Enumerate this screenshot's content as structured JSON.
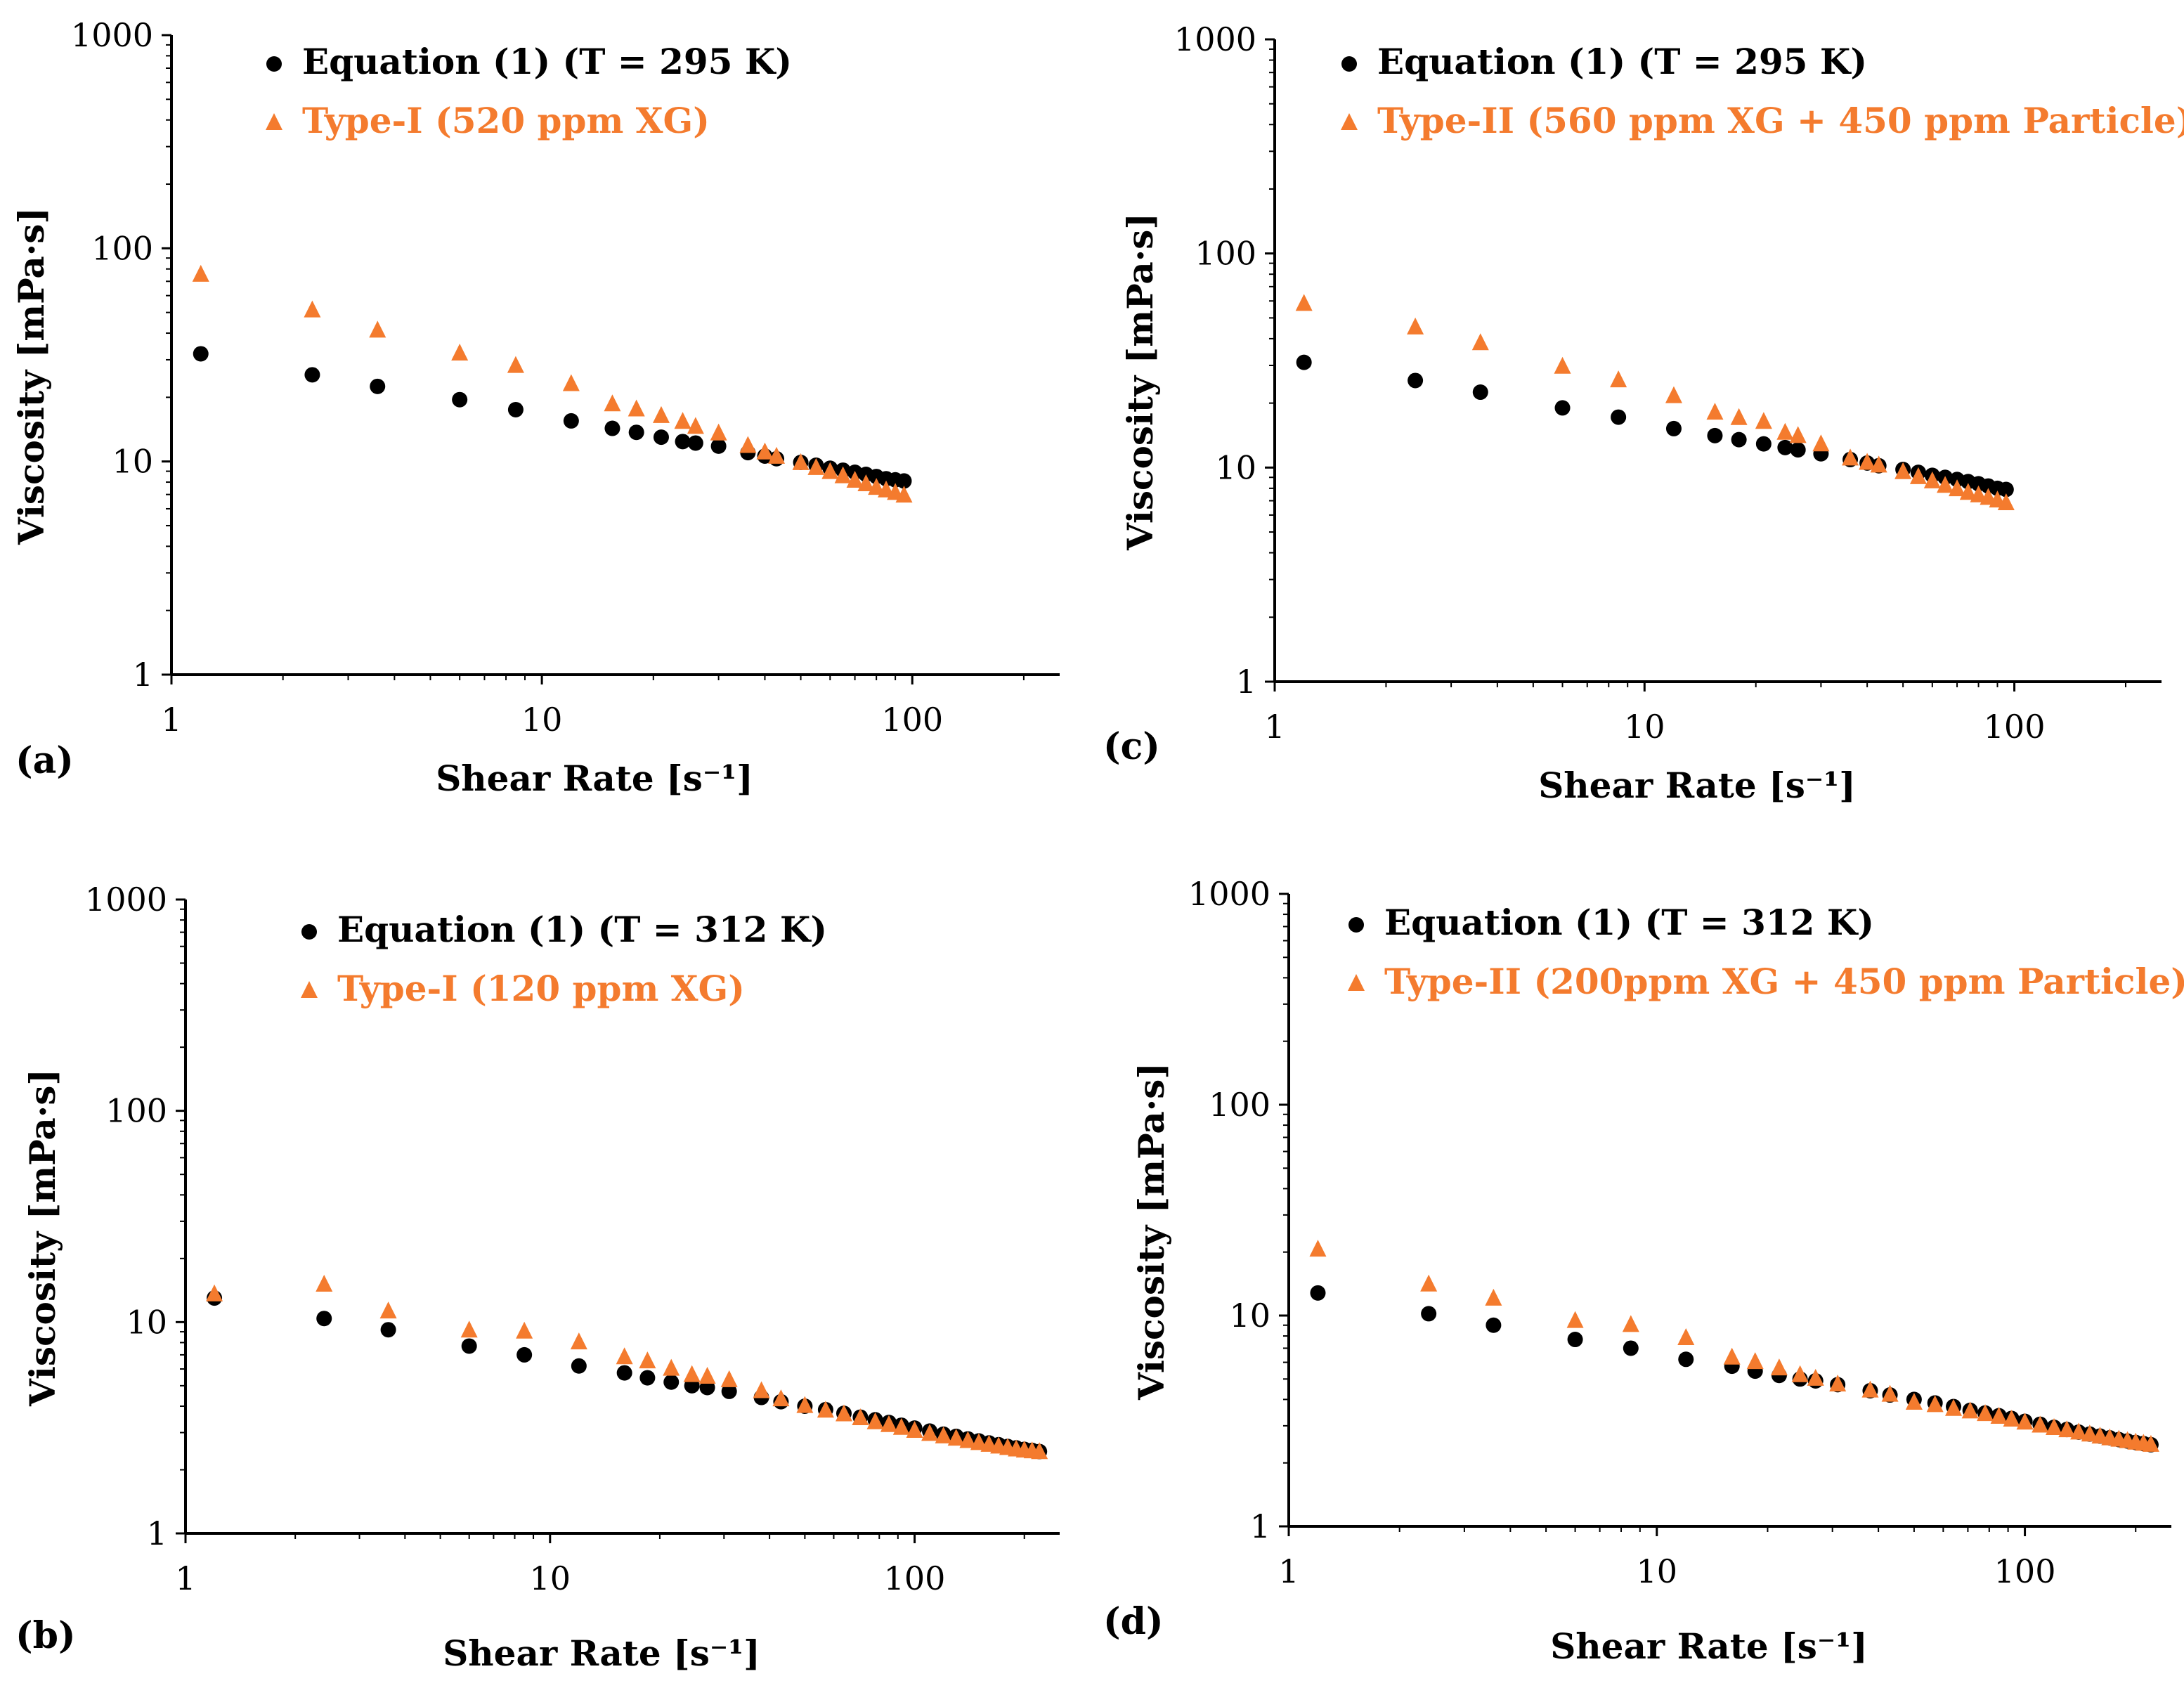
{
  "chart_data": [
    {
      "panel": "(a)",
      "type": "scatter",
      "xscale": "log",
      "yscale": "log",
      "xlim": [
        1,
        250
      ],
      "ylim": [
        1,
        1000
      ],
      "xticks": [
        "1",
        "10",
        "100"
      ],
      "yticks": [
        "1",
        "10",
        "100",
        "1000"
      ],
      "xlabel": "Shear Rate [s⁻¹]",
      "ylabel": "Viscosity [mPa·s]",
      "legend": "top-left",
      "colors": {
        "equation": "#000000",
        "fluid": "#F47B2E"
      },
      "series": [
        {
          "name": "Equation (1) (T = 295 K)",
          "marker": "circle",
          "x": [
            1.2,
            2.4,
            3.6,
            6.0,
            8.5,
            12,
            15.5,
            18,
            21,
            24,
            26,
            30,
            36,
            40,
            43,
            50,
            55,
            60,
            65,
            70,
            75,
            80,
            85,
            90,
            95
          ],
          "y": [
            32,
            25.5,
            22.5,
            19.5,
            17.5,
            15.5,
            14.3,
            13.7,
            13,
            12.4,
            12.2,
            11.8,
            11,
            10.6,
            10.3,
            9.9,
            9.6,
            9.3,
            9.1,
            8.9,
            8.7,
            8.5,
            8.3,
            8.2,
            8.1
          ]
        },
        {
          "name": "Type-I (520 ppm XG)",
          "marker": "triangle",
          "x": [
            1.2,
            2.4,
            3.6,
            6.0,
            8.5,
            12,
            15.5,
            18,
            21,
            24,
            26,
            30,
            36,
            40,
            43,
            50,
            55,
            60,
            65,
            70,
            75,
            80,
            85,
            90,
            95
          ],
          "y": [
            75,
            51,
            41,
            32,
            28,
            23,
            18.5,
            17.5,
            16.3,
            15.3,
            14.5,
            13.5,
            11.8,
            11,
            10.5,
            9.8,
            9.3,
            8.9,
            8.5,
            8.1,
            7.8,
            7.5,
            7.3,
            7.1,
            6.9
          ]
        }
      ]
    },
    {
      "panel": "(b)",
      "type": "scatter",
      "xscale": "log",
      "yscale": "log",
      "xlim": [
        1,
        250
      ],
      "ylim": [
        1,
        1000
      ],
      "xticks": [
        "1",
        "10",
        "100"
      ],
      "yticks": [
        "1",
        "10",
        "100",
        "1000"
      ],
      "xlabel": "Shear Rate [s⁻¹]",
      "ylabel": "Viscosity [mPa·s]",
      "legend": "top-left",
      "colors": {
        "equation": "#000000",
        "fluid": "#F47B2E"
      },
      "series": [
        {
          "name": "Equation (1) (T = 312 K)",
          "marker": "circle",
          "x": [
            1.2,
            2.4,
            3.6,
            6.0,
            8.5,
            12,
            16,
            18.5,
            21.5,
            24.5,
            27,
            31,
            38,
            43,
            50,
            57,
            64,
            71,
            78,
            85,
            92,
            100,
            110,
            120,
            130,
            140,
            150,
            160,
            170,
            180,
            190,
            200,
            210,
            220
          ],
          "y": [
            13,
            10.4,
            9.2,
            7.7,
            7.0,
            6.2,
            5.75,
            5.45,
            5.2,
            5.0,
            4.9,
            4.7,
            4.4,
            4.2,
            4.0,
            3.85,
            3.7,
            3.55,
            3.45,
            3.35,
            3.25,
            3.15,
            3.05,
            2.95,
            2.88,
            2.8,
            2.74,
            2.68,
            2.63,
            2.58,
            2.54,
            2.5,
            2.47,
            2.44
          ]
        },
        {
          "name": "Type-I (120 ppm XG)",
          "marker": "triangle",
          "x": [
            1.2,
            2.4,
            3.6,
            6.0,
            8.5,
            12,
            16,
            18.5,
            21.5,
            24.5,
            27,
            31,
            38,
            43,
            50,
            57,
            64,
            71,
            78,
            85,
            92,
            100,
            110,
            120,
            130,
            140,
            150,
            160,
            170,
            180,
            190,
            200,
            210,
            220
          ],
          "y": [
            13.5,
            15,
            11.2,
            9.1,
            9.0,
            8.0,
            6.8,
            6.5,
            6.0,
            5.6,
            5.5,
            5.3,
            4.7,
            4.3,
            4.0,
            3.8,
            3.65,
            3.5,
            3.35,
            3.25,
            3.15,
            3.05,
            2.95,
            2.87,
            2.8,
            2.73,
            2.67,
            2.62,
            2.57,
            2.53,
            2.49,
            2.46,
            2.44,
            2.42
          ]
        }
      ]
    },
    {
      "panel": "(c)",
      "type": "scatter",
      "xscale": "log",
      "yscale": "log",
      "xlim": [
        1,
        250
      ],
      "ylim": [
        1,
        1000
      ],
      "xticks": [
        "1",
        "10",
        "100"
      ],
      "yticks": [
        "1",
        "10",
        "100",
        "1000"
      ],
      "xlabel": "Shear Rate [s⁻¹]",
      "ylabel": "Viscosity [mPa·s]",
      "legend": "top-left",
      "colors": {
        "equation": "#000000",
        "fluid": "#F47B2E"
      },
      "series": [
        {
          "name": "Equation (1) (T = 295 K)",
          "marker": "circle",
          "x": [
            1.2,
            2.4,
            3.6,
            6.0,
            8.5,
            12,
            15.5,
            18,
            21,
            24,
            26,
            30,
            36,
            40,
            43,
            50,
            55,
            60,
            65,
            70,
            75,
            80,
            85,
            90,
            95
          ],
          "y": [
            31,
            25.5,
            22.5,
            19,
            17.2,
            15.2,
            14.1,
            13.5,
            12.9,
            12.4,
            12.1,
            11.6,
            10.9,
            10.5,
            10.2,
            9.8,
            9.5,
            9.2,
            9.0,
            8.8,
            8.6,
            8.4,
            8.2,
            8.0,
            7.9
          ]
        },
        {
          "name": "Type-II (560 ppm XG + 450 ppm Particle)",
          "marker": "triangle",
          "x": [
            1.2,
            2.4,
            3.6,
            6.0,
            8.5,
            12,
            15.5,
            18,
            21,
            24,
            26,
            30,
            36,
            40,
            43,
            50,
            55,
            60,
            65,
            70,
            75,
            80,
            85,
            90,
            95
          ],
          "y": [
            58,
            45,
            38,
            29.5,
            25.5,
            21.5,
            18,
            17,
            16.3,
            14.5,
            14,
            12.8,
            11,
            10.5,
            10.2,
            9.5,
            9.0,
            8.6,
            8.2,
            7.9,
            7.6,
            7.4,
            7.2,
            7.0,
            6.8
          ]
        }
      ]
    },
    {
      "panel": "(d)",
      "type": "scatter",
      "xscale": "log",
      "yscale": "log",
      "xlim": [
        1,
        250
      ],
      "ylim": [
        1,
        1000
      ],
      "xticks": [
        "1",
        "10",
        "100"
      ],
      "yticks": [
        "1",
        "10",
        "100",
        "1000"
      ],
      "xlabel": "Shear Rate [s⁻¹]",
      "ylabel": "Viscosity [mPa·s]",
      "legend": "top-left",
      "colors": {
        "equation": "#000000",
        "fluid": "#F47B2E"
      },
      "series": [
        {
          "name": "Equation (1) (T = 312 K)",
          "marker": "circle",
          "x": [
            1.2,
            2.4,
            3.6,
            6.0,
            8.5,
            12,
            16,
            18.5,
            21.5,
            24.5,
            27,
            31,
            38,
            43,
            50,
            57,
            64,
            71,
            78,
            85,
            92,
            100,
            110,
            120,
            130,
            140,
            150,
            160,
            170,
            180,
            190,
            200,
            210,
            220
          ],
          "y": [
            12.8,
            10.2,
            9.0,
            7.7,
            7.0,
            6.2,
            5.75,
            5.45,
            5.2,
            5.0,
            4.9,
            4.7,
            4.4,
            4.2,
            4.0,
            3.85,
            3.7,
            3.55,
            3.45,
            3.35,
            3.25,
            3.15,
            3.05,
            2.95,
            2.88,
            2.8,
            2.74,
            2.68,
            2.63,
            2.58,
            2.54,
            2.5,
            2.47,
            2.44
          ]
        },
        {
          "name": "Type-II (200ppm XG + 450 ppm Particle)",
          "marker": "triangle",
          "x": [
            1.2,
            2.4,
            3.6,
            6.0,
            8.5,
            12,
            16,
            18.5,
            21.5,
            24.5,
            27,
            31,
            38,
            43,
            50,
            57,
            64,
            71,
            78,
            85,
            92,
            100,
            110,
            120,
            130,
            140,
            150,
            160,
            170,
            180,
            190,
            200,
            210,
            220
          ],
          "y": [
            20.5,
            14,
            12,
            9.4,
            9.0,
            7.8,
            6.3,
            6.0,
            5.6,
            5.2,
            5.0,
            4.7,
            4.4,
            4.2,
            3.85,
            3.75,
            3.6,
            3.5,
            3.4,
            3.3,
            3.2,
            3.1,
            3.0,
            2.92,
            2.85,
            2.78,
            2.72,
            2.66,
            2.61,
            2.57,
            2.53,
            2.49,
            2.46,
            2.43
          ]
        }
      ]
    }
  ]
}
